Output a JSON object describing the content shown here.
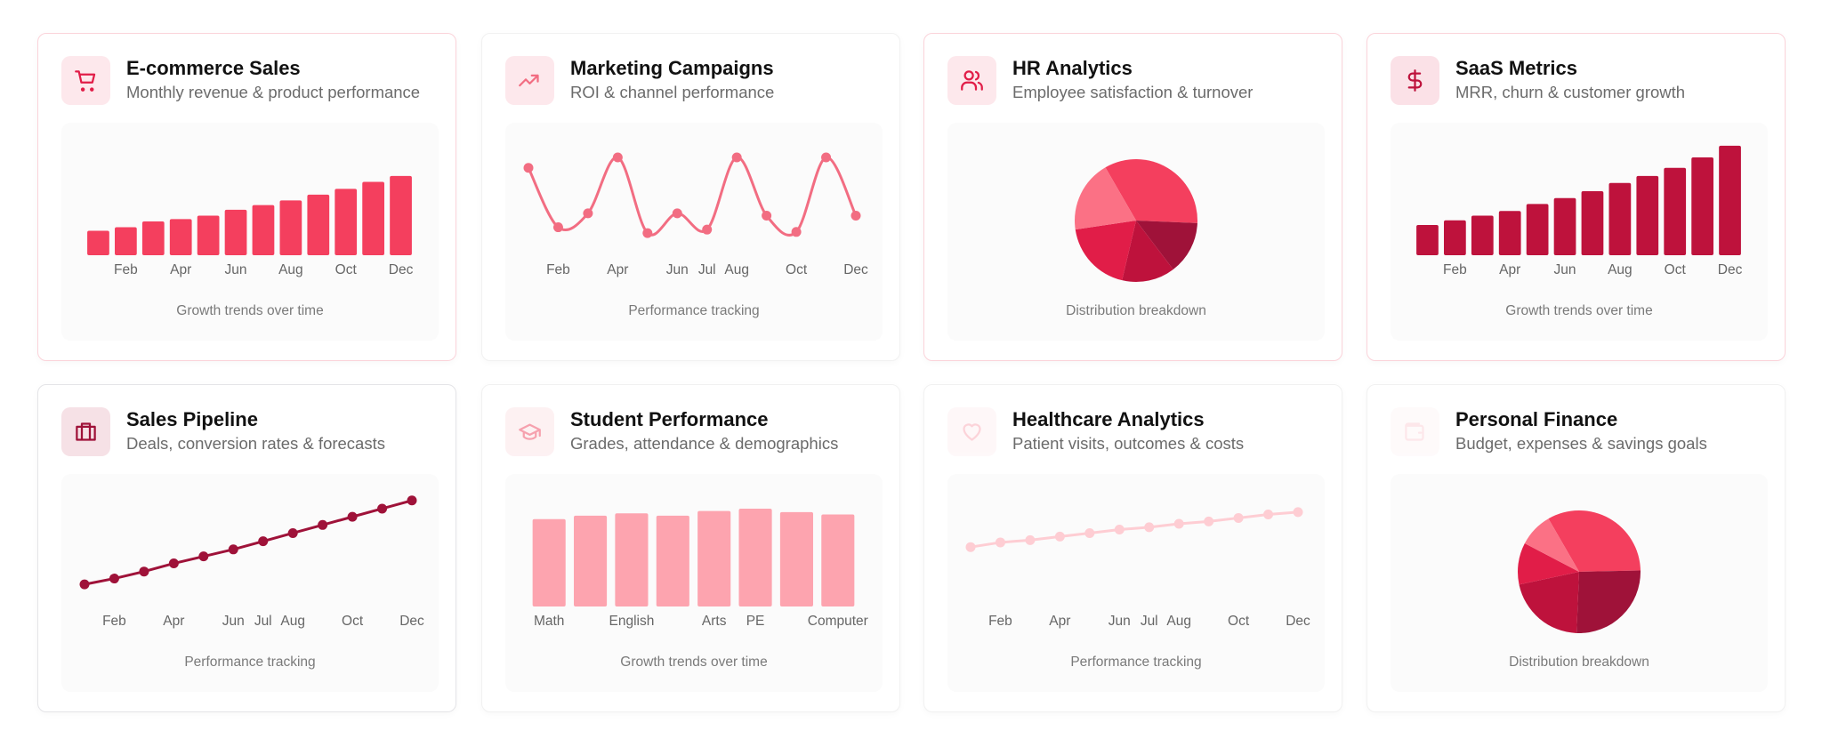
{
  "chart_data": [
    {
      "type": "bar",
      "title": "E-commerce Sales",
      "subtitle": "Monthly revenue & product performance",
      "caption": "Growth trends over time",
      "categories": [
        null,
        "Feb",
        null,
        "Apr",
        null,
        "Jun",
        null,
        "Aug",
        null,
        "Oct",
        null,
        "Dec"
      ],
      "values": [
        21,
        24,
        29,
        31,
        34,
        39,
        43,
        47,
        52,
        57,
        63,
        68
      ],
      "color": "#f43f5e",
      "ylim": [
        0,
        100
      ]
    },
    {
      "type": "line",
      "title": "Marketing Campaigns",
      "subtitle": "ROI & channel performance",
      "caption": "Performance tracking",
      "categories": [
        null,
        "Feb",
        null,
        "Apr",
        null,
        "Jun",
        "Jul",
        "Aug",
        null,
        "Oct",
        null,
        "Dec"
      ],
      "values": [
        75,
        24,
        36,
        84,
        19,
        36,
        22,
        84,
        34,
        20,
        84,
        34
      ],
      "color": "#f26d82",
      "ylim": [
        0,
        100
      ]
    },
    {
      "type": "pie",
      "title": "HR Analytics",
      "subtitle": "Employee satisfaction & turnover",
      "caption": "Distribution breakdown",
      "values": [
        34,
        14,
        14,
        19,
        19
      ],
      "colors": [
        "#f43f5e",
        "#9f1239",
        "#be123c",
        "#e11d48",
        "#fb7185"
      ]
    },
    {
      "type": "bar",
      "title": "SaaS Metrics",
      "subtitle": "MRR, churn & customer growth",
      "caption": "Growth trends over time",
      "categories": [
        null,
        "Feb",
        null,
        "Apr",
        null,
        "Jun",
        null,
        "Aug",
        null,
        "Oct",
        null,
        "Dec"
      ],
      "values": [
        26,
        30,
        34,
        38,
        44,
        49,
        55,
        62,
        68,
        75,
        84,
        94
      ],
      "color": "#be123c",
      "ylim": [
        0,
        100
      ]
    },
    {
      "type": "line",
      "title": "Sales Pipeline",
      "subtitle": "Deals, conversion rates & forecasts",
      "caption": "Performance tracking",
      "categories": [
        null,
        "Feb",
        null,
        "Apr",
        null,
        "Jun",
        "Jul",
        "Aug",
        null,
        "Oct",
        null,
        "Dec"
      ],
      "values": [
        19,
        24,
        30,
        37,
        43,
        49,
        56,
        63,
        70,
        77,
        84,
        91
      ],
      "color": "#9f1239",
      "ylim": [
        0,
        100
      ]
    },
    {
      "type": "bar",
      "title": "Student Performance",
      "subtitle": "Grades, attendance & demographics",
      "caption": "Growth trends over time",
      "categories": [
        "Math",
        null,
        "English",
        null,
        "Arts",
        "PE",
        null,
        "Computer"
      ],
      "values": [
        75,
        78,
        80,
        78,
        82,
        84,
        81,
        79
      ],
      "color": "#fda4af",
      "ylim": [
        0,
        100
      ]
    },
    {
      "type": "line",
      "title": "Healthcare Analytics",
      "subtitle": "Patient visits, outcomes & costs",
      "caption": "Performance tracking",
      "categories": [
        null,
        "Feb",
        null,
        "Apr",
        null,
        "Jun",
        "Jul",
        "Aug",
        null,
        "Oct",
        null,
        "Dec"
      ],
      "values": [
        51,
        55,
        57,
        60,
        63,
        66,
        68,
        71,
        73,
        76,
        79,
        81
      ],
      "color": "#fecdd3",
      "ylim": [
        0,
        100
      ]
    },
    {
      "type": "pie",
      "title": "Personal Finance",
      "subtitle": "Budget, expenses & savings goals",
      "caption": "Distribution breakdown",
      "values": [
        33,
        26,
        21,
        11,
        9
      ],
      "colors": [
        "#f43f5e",
        "#9f1239",
        "#be123c",
        "#e11d48",
        "#fb7185"
      ]
    }
  ]
}
